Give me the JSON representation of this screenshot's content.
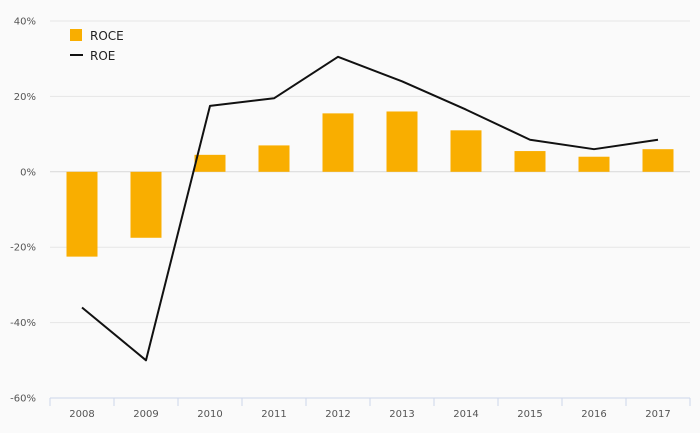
{
  "chart_data": {
    "type": "bar",
    "categories": [
      "2008",
      "2009",
      "2010",
      "2011",
      "2012",
      "2013",
      "2014",
      "2015",
      "2016",
      "2017"
    ],
    "series": [
      {
        "name": "ROCE",
        "type": "bar",
        "color": "#f9ae00",
        "values": [
          -22.5,
          -17.5,
          4.5,
          7.0,
          15.5,
          16.0,
          11.0,
          5.5,
          4.0,
          6.0
        ]
      },
      {
        "name": "ROE",
        "type": "line",
        "color": "#111111",
        "values": [
          -36.0,
          -50.0,
          17.5,
          19.5,
          30.5,
          24.0,
          16.5,
          8.5,
          6.0,
          8.5
        ]
      }
    ],
    "ylim": [
      -60,
      40
    ],
    "yticks": [
      40,
      20,
      0,
      -20,
      -40,
      -60
    ],
    "ytick_labels": [
      "40%",
      "20%",
      "0%",
      "-20%",
      "-40%",
      "-60%"
    ],
    "grid": true,
    "legend": "top-left",
    "title": "",
    "xlabel": "",
    "ylabel": ""
  }
}
